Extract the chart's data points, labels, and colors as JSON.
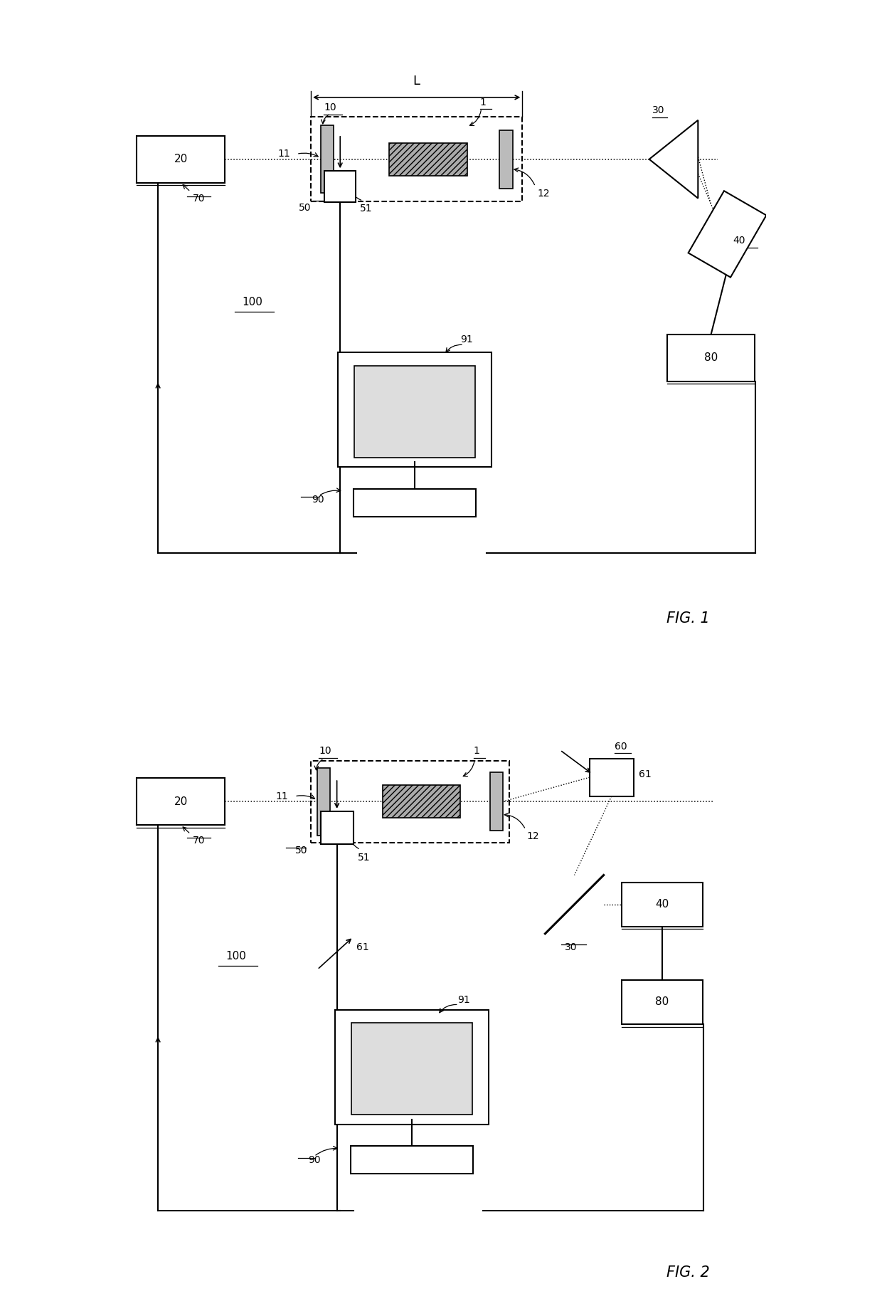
{
  "fig_width": 12.4,
  "fig_height": 18.42,
  "bg_color": "#ffffff",
  "line_color": "#000000",
  "fig1_label": "FIG. 1",
  "fig2_label": "FIG. 2"
}
